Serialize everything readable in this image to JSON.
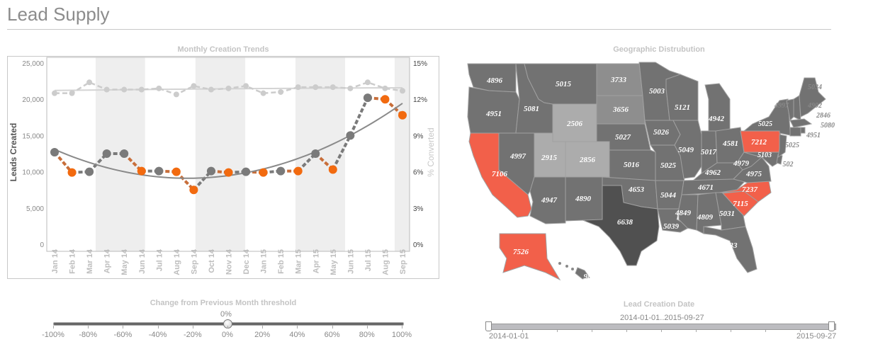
{
  "header": {
    "title": "Lead Supply"
  },
  "trend_panel": {
    "title": "Monthly Creation Trends"
  },
  "map_panel": {
    "title": "Geographic Distrubution"
  },
  "chart_data": {
    "type": "line",
    "title": "Monthly Creation Trends",
    "categories": [
      "Jan 14",
      "Feb 14",
      "Mar 14",
      "Apr 14",
      "May 14",
      "Jun 14",
      "Jul 14",
      "Aug 14",
      "Sep 14",
      "Oct 14",
      "Nov 14",
      "Dec 14",
      "Jan 15",
      "Feb 15",
      "Mar 15",
      "Apr 15",
      "May 15",
      "Jun 15",
      "Jul 15",
      "Aug 15",
      "Sep 15"
    ],
    "ylabel": "Leads Created",
    "y2label": "% Converted",
    "ylim": [
      0,
      25000
    ],
    "y2lim": [
      0,
      15
    ],
    "yticks": [
      "0",
      "5,000",
      "10,000",
      "15,000",
      "20,000",
      "25,000"
    ],
    "y2ticks": [
      "0%",
      "3%",
      "6%",
      "9%",
      "12%",
      "15%"
    ],
    "series": [
      {
        "axis": "left",
        "style": "dashed with markers plus quadratic trend line",
        "values": [
          12700,
          9900,
          10000,
          12500,
          12500,
          10100,
          10100,
          10000,
          7500,
          10100,
          9900,
          10000,
          9900,
          10100,
          10100,
          12500,
          10300,
          15000,
          20200,
          20000,
          17800
        ],
        "marker_direction": [
          "up",
          "down",
          "up",
          "up",
          "up",
          "down",
          "up",
          "down",
          "down",
          "up",
          "down",
          "up",
          "down",
          "up",
          "down",
          "up",
          "down",
          "up",
          "up",
          "down",
          "down"
        ]
      },
      {
        "axis": "right",
        "style": "dashed with markers plus trend line",
        "values": [
          12.5,
          12.5,
          13.4,
          12.8,
          12.8,
          12.8,
          12.9,
          12.4,
          13.1,
          12.8,
          12.9,
          13.1,
          12.5,
          12.6,
          13.0,
          13.0,
          13.0,
          12.9,
          13.4,
          12.9,
          12.7
        ]
      }
    ],
    "colors": {
      "decrease": "#f26a0f",
      "decrease_line": "#c86e3a",
      "increase": "#7a7a7a",
      "conversion": "#cccccc",
      "band": "#eeeeee"
    },
    "grid": false,
    "legend": "none"
  },
  "map": {
    "colors": {
      "default": "#727272",
      "medium": "#8e8e8e",
      "light": "#acacac",
      "dark": "#505050",
      "highlight": "#f2604a"
    },
    "regions": [
      {
        "value": "4896",
        "tier": "default"
      },
      {
        "value": "4951",
        "tier": "default"
      },
      {
        "value": "5081",
        "tier": "default"
      },
      {
        "value": "5015",
        "tier": "default"
      },
      {
        "value": "2506",
        "tier": "light"
      },
      {
        "value": "3733",
        "tier": "medium"
      },
      {
        "value": "3656",
        "tier": "medium"
      },
      {
        "value": "5027",
        "tier": "default"
      },
      {
        "value": "5016",
        "tier": "default"
      },
      {
        "value": "4653",
        "tier": "default"
      },
      {
        "value": "6638",
        "tier": "dark"
      },
      {
        "value": "2856",
        "tier": "light"
      },
      {
        "value": "2915",
        "tier": "light"
      },
      {
        "value": "4997",
        "tier": "default"
      },
      {
        "value": "7106",
        "tier": "highlight"
      },
      {
        "value": "4947",
        "tier": "default"
      },
      {
        "value": "4890",
        "tier": "default"
      },
      {
        "value": "5003",
        "tier": "default"
      },
      {
        "value": "5026",
        "tier": "default"
      },
      {
        "value": "5025",
        "tier": "default"
      },
      {
        "value": "5044",
        "tier": "default"
      },
      {
        "value": "5039",
        "tier": "default"
      },
      {
        "value": "5121",
        "tier": "default"
      },
      {
        "value": "5049",
        "tier": "default"
      },
      {
        "value": "4942",
        "tier": "default"
      },
      {
        "value": "5017",
        "tier": "default"
      },
      {
        "value": "4581",
        "tier": "default"
      },
      {
        "value": "4962",
        "tier": "default"
      },
      {
        "value": "4671",
        "tier": "default"
      },
      {
        "value": "4849",
        "tier": "default"
      },
      {
        "value": "4809",
        "tier": "default"
      },
      {
        "value": "5031",
        "tier": "default"
      },
      {
        "value": "33",
        "tier": "default"
      },
      {
        "value": "7115",
        "tier": "highlight"
      },
      {
        "value": "7237",
        "tier": "highlight"
      },
      {
        "value": "4975",
        "tier": "default"
      },
      {
        "value": "4979",
        "tier": "default"
      },
      {
        "value": "7212",
        "tier": "highlight"
      },
      {
        "value": "5025",
        "tier": "default"
      },
      {
        "value": "5103",
        "tier": "default"
      },
      {
        "value": "502",
        "tier": "default"
      },
      {
        "value": "5025",
        "tier": "default"
      },
      {
        "value": "4997",
        "tier": "default"
      },
      {
        "value": "4902",
        "tier": "default"
      },
      {
        "value": "2846",
        "tier": "default"
      },
      {
        "value": "5080",
        "tier": "default"
      },
      {
        "value": "4951",
        "tier": "default"
      },
      {
        "value": "5034",
        "tier": "default"
      },
      {
        "value": "7526",
        "tier": "highlight"
      },
      {
        "value": "98",
        "tier": "default"
      }
    ]
  },
  "threshold_slider": {
    "title": "Change from Previous Month threshold",
    "value": "0%",
    "value_pct": 0,
    "ticks": [
      "-100%",
      "-80%",
      "-60%",
      "-40%",
      "-20%",
      "0%",
      "20%",
      "40%",
      "60%",
      "80%",
      "100%"
    ]
  },
  "date_slider": {
    "title": "Lead Creation Date",
    "range": "2014-01-01..2015-09-27",
    "start": "2014-01-01",
    "end": "2015-09-27"
  }
}
